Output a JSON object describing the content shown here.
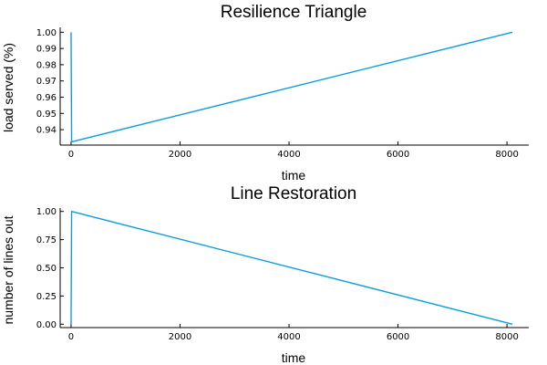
{
  "chart_data": [
    {
      "type": "line",
      "title": "Resilience Triangle",
      "xlabel": "time",
      "ylabel": "load served (%)",
      "xlim": [
        -200,
        8400
      ],
      "ylim": [
        0.9305,
        1.003
      ],
      "xticks": [
        0,
        2000,
        4000,
        6000,
        8000
      ],
      "yticks": [
        0.94,
        0.95,
        0.96,
        0.97,
        0.98,
        0.99,
        1.0
      ],
      "xtick_labels": [
        "0",
        "2000",
        "4000",
        "6000",
        "8000"
      ],
      "ytick_labels": [
        "0.94",
        "0.95",
        "0.96",
        "0.97",
        "0.98",
        "0.99",
        "1.00"
      ],
      "grid": false,
      "legend": false,
      "series": [
        {
          "x": [
            0,
            10,
            10,
            8100
          ],
          "y": [
            1.0,
            0.9325,
            0.9325,
            1.0
          ],
          "color": "#0d9ee0"
        }
      ]
    },
    {
      "type": "line",
      "title": "Line Restoration",
      "xlabel": "time",
      "ylabel": "number of lines out",
      "xlim": [
        -200,
        8400
      ],
      "ylim": [
        -0.03,
        1.03
      ],
      "xticks": [
        0,
        2000,
        4000,
        6000,
        8000
      ],
      "yticks": [
        0.0,
        0.25,
        0.5,
        0.75,
        1.0
      ],
      "xtick_labels": [
        "0",
        "2000",
        "4000",
        "6000",
        "8000"
      ],
      "ytick_labels": [
        "0.00",
        "0.25",
        "0.50",
        "0.75",
        "1.00"
      ],
      "grid": false,
      "legend": false,
      "series": [
        {
          "x": [
            0,
            0,
            10,
            8100
          ],
          "y": [
            0.0,
            0.0,
            1.0,
            0.0
          ],
          "color": "#0d9ee0"
        }
      ]
    }
  ]
}
